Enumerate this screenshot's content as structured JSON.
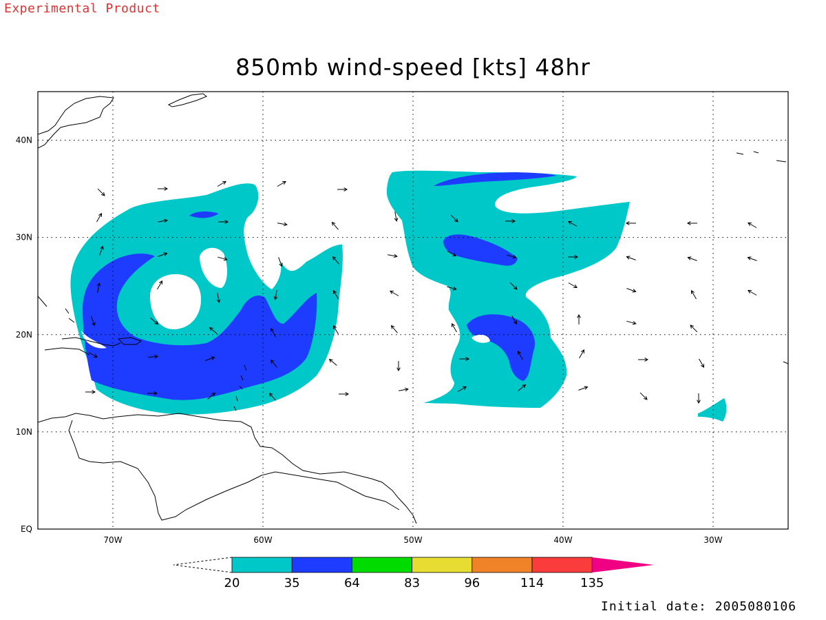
{
  "header_note": "Experimental Product",
  "title": "850mb wind-speed [kts] 48hr",
  "initial_date": "Initial date: 2005080106",
  "map": {
    "lon_range": [
      -75,
      -25
    ],
    "lat_range": [
      0,
      45
    ],
    "lon_ticks": [
      {
        "lon": -70,
        "label": "70W"
      },
      {
        "lon": -60,
        "label": "60W"
      },
      {
        "lon": -50,
        "label": "50W"
      },
      {
        "lon": -40,
        "label": "40W"
      },
      {
        "lon": -30,
        "label": "30W"
      }
    ],
    "lat_ticks": [
      {
        "lat": 0,
        "label": "EQ"
      },
      {
        "lat": 10,
        "label": "10N"
      },
      {
        "lat": 20,
        "label": "20N"
      },
      {
        "lat": 30,
        "label": "30N"
      },
      {
        "lat": 40,
        "label": "40N"
      }
    ],
    "gridlines": "dotted",
    "colors": {
      "c20_35": "#00c8c8",
      "c35_64": "#1e3cff",
      "coast": "#000000",
      "arrow": "#000000"
    }
  },
  "colorbar": {
    "labels": [
      "20",
      "35",
      "64",
      "83",
      "96",
      "114",
      "135"
    ],
    "colors": [
      "#00c8c8",
      "#1e3cff",
      "#00dc00",
      "#e6dc32",
      "#f08228",
      "#fa3c3c",
      "#f00082"
    ]
  }
}
